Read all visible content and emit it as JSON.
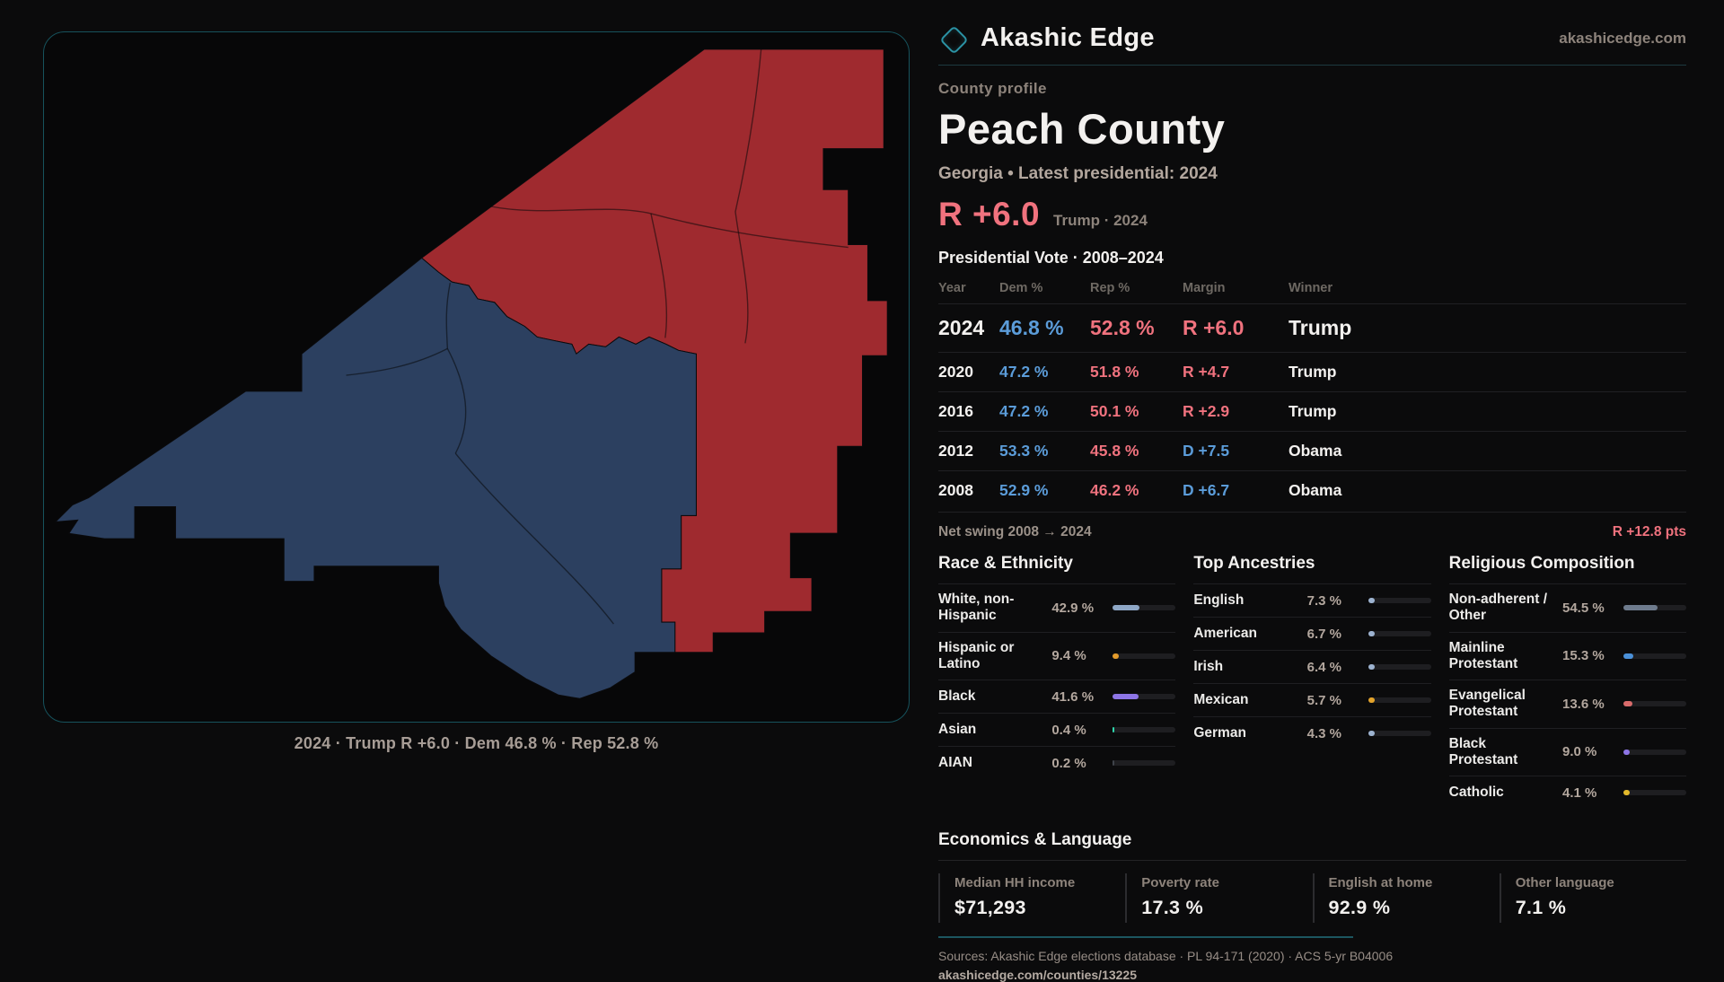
{
  "brand": {
    "name": "Akashic Edge",
    "site": "akashicedge.com",
    "accent_teal": "#2b93a5"
  },
  "header": {
    "kicker": "County profile",
    "title": "Peach County",
    "subtitle": "Georgia • Latest presidential: 2024",
    "lead_value": "R +6.0",
    "lead_note": "Trump · 2024",
    "lead_color": "#f0727e"
  },
  "map": {
    "caption": "2024 · Trump R +6.0 · Dem 46.8 % · Rep 52.8 %",
    "rep_fill": "#9f2a2f",
    "dem_fill": "#2c4060",
    "border_color": "#16525c"
  },
  "vote_table": {
    "title": "Presidential Vote · 2008–2024",
    "columns": [
      "Year",
      "Dem %",
      "Rep %",
      "Margin",
      "Winner"
    ],
    "rows": [
      {
        "year": "2024",
        "dem": "46.8 %",
        "rep": "52.8 %",
        "margin": "R +6.0",
        "margin_party": "R",
        "winner": "Trump",
        "featured": true
      },
      {
        "year": "2020",
        "dem": "47.2 %",
        "rep": "51.8 %",
        "margin": "R +4.7",
        "margin_party": "R",
        "winner": "Trump",
        "featured": false
      },
      {
        "year": "2016",
        "dem": "47.2 %",
        "rep": "50.1 %",
        "margin": "R +2.9",
        "margin_party": "R",
        "winner": "Trump",
        "featured": false
      },
      {
        "year": "2012",
        "dem": "53.3 %",
        "rep": "45.8 %",
        "margin": "D +7.5",
        "margin_party": "D",
        "winner": "Obama",
        "featured": false
      },
      {
        "year": "2008",
        "dem": "52.9 %",
        "rep": "46.2 %",
        "margin": "D +6.7",
        "margin_party": "D",
        "winner": "Obama",
        "featured": false
      }
    ]
  },
  "net_swing": {
    "label": "Net swing 2008 → 2024",
    "value": "R +12.8 pts"
  },
  "demographics": [
    {
      "title": "Race & Ethnicity",
      "rows": [
        {
          "label": "White, non-Hispanic",
          "value": "42.9 %",
          "pct": 42.9,
          "color": "#8ea7c6"
        },
        {
          "label": "Hispanic or Latino",
          "value": "9.4 %",
          "pct": 9.4,
          "color": "#e39b2b"
        },
        {
          "label": "Black",
          "value": "41.6 %",
          "pct": 41.6,
          "color": "#8d75e6"
        },
        {
          "label": "Asian",
          "value": "0.4 %",
          "pct": 0.4,
          "color": "#2fd6ac"
        },
        {
          "label": "AIAN",
          "value": "0.2 %",
          "pct": 0.2,
          "color": "#3f434a"
        }
      ]
    },
    {
      "title": "Top Ancestries",
      "rows": [
        {
          "label": "English",
          "value": "7.3 %",
          "pct": 7.3,
          "color": "#9db3d0"
        },
        {
          "label": "American",
          "value": "6.7 %",
          "pct": 6.7,
          "color": "#9db3d0"
        },
        {
          "label": "Irish",
          "value": "6.4 %",
          "pct": 6.4,
          "color": "#9db3d0"
        },
        {
          "label": "Mexican",
          "value": "5.7 %",
          "pct": 5.7,
          "color": "#e3a32b"
        },
        {
          "label": "German",
          "value": "4.3 %",
          "pct": 4.3,
          "color": "#9db3d0"
        }
      ]
    },
    {
      "title": "Religious Composition",
      "rows": [
        {
          "label": "Non-adherent / Other",
          "value": "54.5 %",
          "pct": 54.5,
          "color": "#6e7b8d"
        },
        {
          "label": "Mainline Protestant",
          "value": "15.3 %",
          "pct": 15.3,
          "color": "#4a90d9"
        },
        {
          "label": "Evangelical Protestant",
          "value": "13.6 %",
          "pct": 13.6,
          "color": "#d96b6b"
        },
        {
          "label": "Black Protestant",
          "value": "9.0 %",
          "pct": 9.0,
          "color": "#8d75e6"
        },
        {
          "label": "Catholic",
          "value": "4.1 %",
          "pct": 4.1,
          "color": "#e3b92b"
        }
      ]
    }
  ],
  "economics": {
    "title": "Economics & Language",
    "stats": [
      {
        "label": "Median HH income",
        "value": "$71,293"
      },
      {
        "label": "Poverty rate",
        "value": "17.3 %"
      },
      {
        "label": "English at home",
        "value": "92.9 %"
      },
      {
        "label": "Other language",
        "value": "7.1 %"
      }
    ]
  },
  "footer": {
    "sources": "Sources: Akashic Edge elections database · PL 94-171 (2020) · ACS 5-yr B04006",
    "url": "akashicedge.com/counties/13225"
  }
}
